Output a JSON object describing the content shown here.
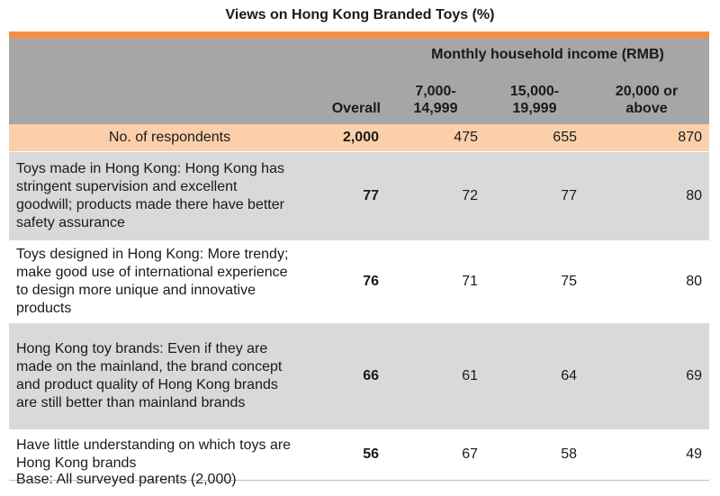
{
  "title": "Views on Hong Kong Branded Toys (%)",
  "header": {
    "group_label": "Monthly household income (RMB)",
    "overall": "Overall",
    "income_bands": [
      [
        "7,000-",
        "14,999"
      ],
      [
        "15,000-",
        "19,999"
      ],
      [
        "20,000 or",
        "above"
      ]
    ]
  },
  "respondents": {
    "label": "No. of respondents",
    "values": [
      "2,000",
      "475",
      "655",
      "870"
    ]
  },
  "rows": [
    {
      "label": "Toys made in Hong Kong: Hong Kong has stringent supervision and excellent goodwill; products made there have better safety assurance",
      "values": [
        "77",
        "72",
        "77",
        "80"
      ]
    },
    {
      "label": "Toys designed in Hong Kong: More trendy; make good use of international experience to design more unique and innovative products",
      "values": [
        "76",
        "71",
        "75",
        "80"
      ]
    },
    {
      "label": "Hong Kong toy brands: Even if they are made on the mainland, the brand concept and product quality of Hong Kong brands are still better than mainland brands",
      "values": [
        "66",
        "61",
        "64",
        "69"
      ]
    },
    {
      "label": "Have little understanding on which toys are Hong Kong brands",
      "values": [
        "56",
        "67",
        "58",
        "49"
      ]
    }
  ],
  "base_note": "Base: All surveyed parents (2,000)",
  "colors": {
    "accent_bar": "#f0914b",
    "header_bg": "#a6a6a6",
    "respondents_bg": "#fbcfa9",
    "row_alt_bg": "#d9d9d9"
  }
}
